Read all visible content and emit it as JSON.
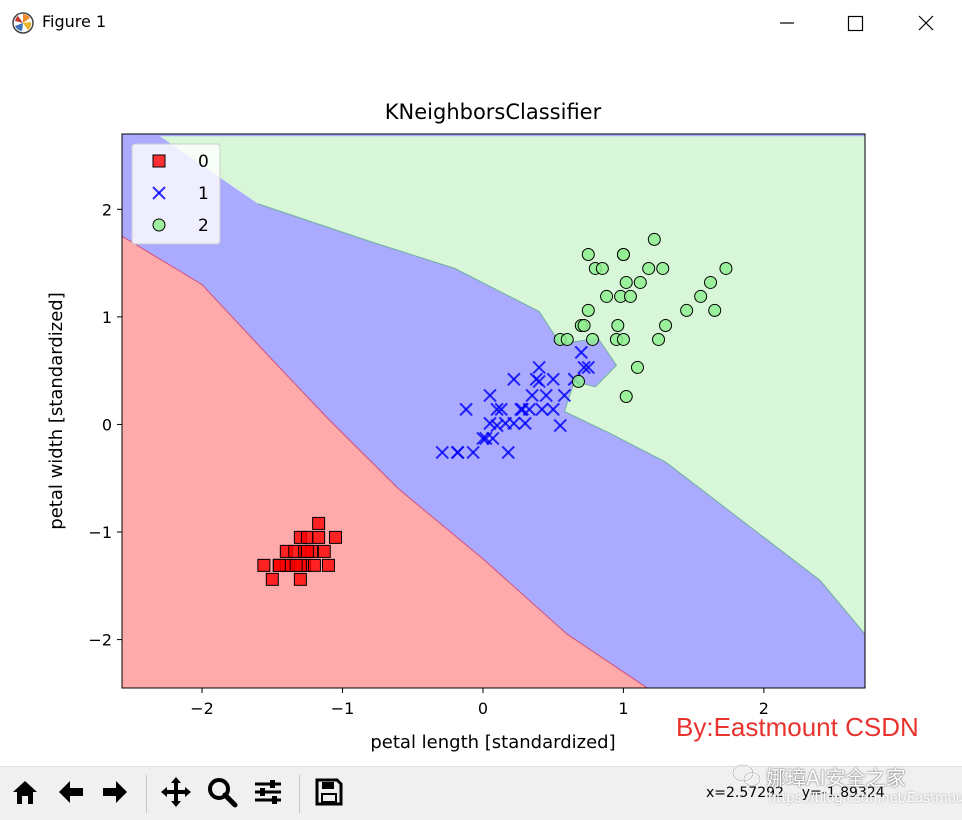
{
  "window": {
    "title": "Figure 1",
    "icon": "matplotlib-icon"
  },
  "window_controls": {
    "minimize": "minimize-icon",
    "maximize": "maximize-icon",
    "close": "close-icon"
  },
  "toolbar": {
    "buttons": [
      "home-icon",
      "back-icon",
      "forward-icon",
      "pan-icon",
      "zoom-icon",
      "configure-subplots-icon",
      "save-icon"
    ],
    "coords": "x=2.57292    y=-1.89324"
  },
  "watermarks": {
    "author": "By:Eastmount CSDN",
    "wechat": "娜璋AI安全之家",
    "url": "https://blog.csdn.net/Eastmount"
  },
  "colors": {
    "region_0": "#ffaaaa",
    "region_1": "#aaaaff",
    "region_2": "#d8f7d8",
    "marker_0": "#ff0000",
    "marker_1": "#0000ff",
    "marker_2": "#90ee90",
    "author_text": "#e8322e"
  },
  "chart_data": {
    "type": "scatter",
    "title": "KNeighborsClassifier",
    "xlabel": "petal length [standardized]",
    "ylabel": "petal width [standardized]",
    "xlim": [
      -2.57,
      2.72
    ],
    "ylim": [
      -2.45,
      2.7
    ],
    "xticks": [
      -2,
      -1,
      0,
      1,
      2
    ],
    "yticks": [
      -2,
      -1,
      0,
      1,
      2
    ],
    "xtick_labels": [
      "−2",
      "−1",
      "0",
      "1",
      "2"
    ],
    "ytick_labels": [
      "−2",
      "−1",
      "0",
      "1",
      "2"
    ],
    "legend_position": "top-left",
    "grid": false,
    "decision_regions": [
      {
        "class": "0",
        "color": "#ffaaaa",
        "polygon": [
          [
            -2.57,
            -2.45
          ],
          [
            -2.57,
            1.75
          ],
          [
            -2.0,
            1.3
          ],
          [
            -1.5,
            0.6
          ],
          [
            -1.1,
            0.05
          ],
          [
            -0.6,
            -0.6
          ],
          [
            0.0,
            -1.25
          ],
          [
            0.6,
            -1.95
          ],
          [
            1.17,
            -2.45
          ]
        ]
      },
      {
        "class": "1",
        "color": "#aaaaff",
        "polygon": [
          [
            -2.57,
            1.75
          ],
          [
            -2.57,
            2.68
          ],
          [
            -2.3,
            2.68
          ],
          [
            -1.6,
            2.05
          ],
          [
            -0.8,
            1.7
          ],
          [
            -0.2,
            1.45
          ],
          [
            0.4,
            1.05
          ],
          [
            0.55,
            0.75
          ],
          [
            0.82,
            0.8
          ],
          [
            0.95,
            0.55
          ],
          [
            0.8,
            0.35
          ],
          [
            0.65,
            0.4
          ],
          [
            0.58,
            0.12
          ],
          [
            0.9,
            -0.08
          ],
          [
            1.3,
            -0.35
          ],
          [
            1.9,
            -0.95
          ],
          [
            2.4,
            -1.45
          ],
          [
            2.72,
            -1.95
          ],
          [
            2.72,
            -2.45
          ],
          [
            1.17,
            -2.45
          ],
          [
            0.6,
            -1.95
          ],
          [
            0.0,
            -1.25
          ],
          [
            -0.6,
            -0.6
          ],
          [
            -1.1,
            0.05
          ],
          [
            -1.5,
            0.6
          ],
          [
            -2.0,
            1.3
          ]
        ]
      },
      {
        "class": "2",
        "color": "#d8f7d8",
        "polygon": [
          [
            -2.3,
            2.68
          ],
          [
            2.72,
            2.68
          ],
          [
            2.72,
            -1.95
          ],
          [
            2.4,
            -1.45
          ],
          [
            1.9,
            -0.95
          ],
          [
            1.3,
            -0.35
          ],
          [
            0.9,
            -0.08
          ],
          [
            0.58,
            0.12
          ],
          [
            0.65,
            0.4
          ],
          [
            0.8,
            0.35
          ],
          [
            0.95,
            0.55
          ],
          [
            0.82,
            0.8
          ],
          [
            0.55,
            0.75
          ],
          [
            0.4,
            1.05
          ],
          [
            -0.2,
            1.45
          ],
          [
            -0.8,
            1.7
          ],
          [
            -1.6,
            2.05
          ]
        ]
      }
    ],
    "series": [
      {
        "name": "0",
        "marker": "square",
        "color": "#ff0000",
        "x": [
          -1.56,
          -1.5,
          -1.45,
          -1.4,
          -1.37,
          -1.34,
          -1.3,
          -1.3,
          -1.27,
          -1.27,
          -1.25,
          -1.22,
          -1.2,
          -1.17,
          -1.13,
          -1.1,
          -1.05,
          -1.4,
          -1.3,
          -1.45,
          -1.25,
          -1.33,
          -1.17
        ],
        "y": [
          -1.31,
          -1.44,
          -1.31,
          -1.18,
          -1.31,
          -1.18,
          -1.05,
          -1.44,
          -1.18,
          -1.31,
          -1.05,
          -1.18,
          -1.31,
          -1.05,
          -1.18,
          -1.31,
          -1.05,
          -1.31,
          -1.31,
          -1.31,
          -1.18,
          -1.31,
          -0.92
        ]
      },
      {
        "name": "1",
        "marker": "x",
        "color": "#0000ff",
        "x": [
          -0.29,
          -0.18,
          -0.12,
          -0.07,
          0.0,
          0.05,
          0.07,
          0.1,
          0.13,
          0.16,
          0.18,
          0.22,
          0.27,
          0.3,
          0.33,
          0.38,
          0.4,
          0.42,
          0.45,
          0.5,
          0.5,
          0.55,
          0.58,
          0.65,
          0.7,
          0.72,
          0.75,
          0.1,
          0.22,
          0.28,
          0.35,
          0.4,
          0.05,
          -0.18,
          0.02
        ],
        "y": [
          -0.26,
          -0.26,
          0.14,
          -0.26,
          -0.13,
          0.01,
          -0.13,
          0.14,
          0.14,
          0.01,
          -0.26,
          0.42,
          0.14,
          0.01,
          0.14,
          0.42,
          0.53,
          0.14,
          0.27,
          0.14,
          0.42,
          -0.01,
          0.27,
          0.42,
          0.67,
          0.53,
          0.53,
          -0.01,
          0.01,
          0.14,
          0.27,
          0.4,
          0.27,
          -0.26,
          -0.13
        ]
      },
      {
        "name": "2",
        "marker": "circle",
        "color": "#90ee90",
        "x": [
          0.55,
          0.6,
          0.7,
          0.72,
          0.75,
          0.75,
          0.78,
          0.8,
          0.85,
          0.88,
          0.95,
          0.98,
          1.0,
          1.0,
          1.02,
          1.02,
          1.05,
          1.1,
          1.12,
          1.18,
          1.22,
          1.25,
          1.28,
          1.3,
          1.45,
          1.55,
          1.62,
          1.65,
          1.73,
          0.68,
          1.0,
          0.96
        ],
        "y": [
          0.79,
          0.79,
          0.92,
          0.92,
          1.06,
          1.58,
          0.79,
          1.45,
          1.45,
          1.19,
          0.79,
          1.19,
          0.79,
          1.58,
          1.32,
          0.26,
          1.19,
          0.53,
          1.32,
          1.45,
          1.72,
          0.79,
          1.45,
          0.92,
          1.06,
          1.19,
          1.32,
          1.06,
          1.45,
          0.4,
          1.58,
          0.92
        ]
      }
    ],
    "legend": [
      {
        "label": "0",
        "marker": "square",
        "color": "#ff0000"
      },
      {
        "label": "1",
        "marker": "x",
        "color": "#0000ff"
      },
      {
        "label": "2",
        "marker": "circle",
        "color": "#90ee90"
      }
    ]
  }
}
